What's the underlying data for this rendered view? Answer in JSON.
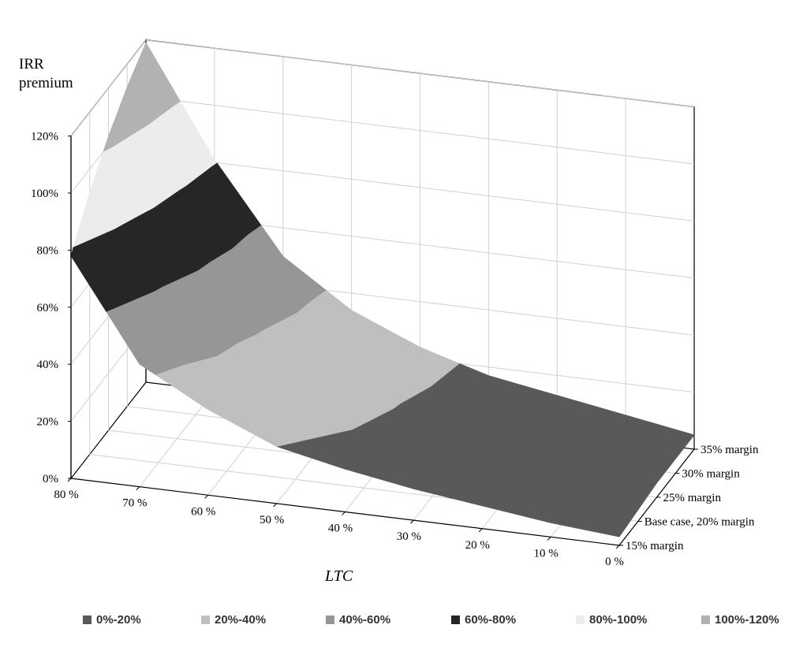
{
  "chart_data": {
    "type": "surface",
    "zlabel_line1": "IRR",
    "zlabel_line2": "premium",
    "xlabel": "LTC",
    "x_ticks": [
      "80 %",
      "70 %",
      "60 %",
      "50 %",
      "40 %",
      "30 %",
      "20 %",
      "10 %",
      "0 %"
    ],
    "x": [
      80,
      70,
      60,
      50,
      40,
      30,
      20,
      10,
      0
    ],
    "y_categories": [
      "15% margin",
      "Base case, 20% margin",
      "25% margin",
      "30% margin",
      "35% margin"
    ],
    "z_ticks": [
      "0%",
      "20%",
      "40%",
      "60%",
      "80%",
      "100%",
      "120%"
    ],
    "zlim": [
      0,
      1.2
    ],
    "series": [
      {
        "name": "15% margin",
        "values": [
          0.78,
          0.43,
          0.3,
          0.2,
          0.15,
          0.11,
          0.08,
          0.05,
          0.03
        ]
      },
      {
        "name": "Base case, 20% margin",
        "values": [
          0.92,
          0.58,
          0.37,
          0.25,
          0.19,
          0.14,
          0.1,
          0.07,
          0.04
        ]
      },
      {
        "name": "25% margin",
        "values": [
          1.03,
          0.68,
          0.42,
          0.29,
          0.21,
          0.15,
          0.11,
          0.08,
          0.05
        ]
      },
      {
        "name": "30% margin",
        "values": [
          1.12,
          0.75,
          0.47,
          0.32,
          0.23,
          0.16,
          0.12,
          0.09,
          0.05
        ]
      },
      {
        "name": "35% margin",
        "values": [
          1.19,
          0.81,
          0.5,
          0.34,
          0.24,
          0.17,
          0.13,
          0.09,
          0.05
        ]
      }
    ],
    "bands": [
      {
        "label": "0%-20%",
        "from": 0.0,
        "to": 0.2,
        "color": "#595959"
      },
      {
        "label": "20%-40%",
        "from": 0.2,
        "to": 0.4,
        "color": "#bfbfbf"
      },
      {
        "label": "40%-60%",
        "from": 0.4,
        "to": 0.6,
        "color": "#969696"
      },
      {
        "label": "60%-80%",
        "from": 0.6,
        "to": 0.8,
        "color": "#262626"
      },
      {
        "label": "80%-100%",
        "from": 0.8,
        "to": 1.0,
        "color": "#ececec"
      },
      {
        "label": "100%-120%",
        "from": 1.0,
        "to": 1.2,
        "color": "#b2b2b2"
      }
    ],
    "grid": true,
    "legend_position": "bottom"
  }
}
